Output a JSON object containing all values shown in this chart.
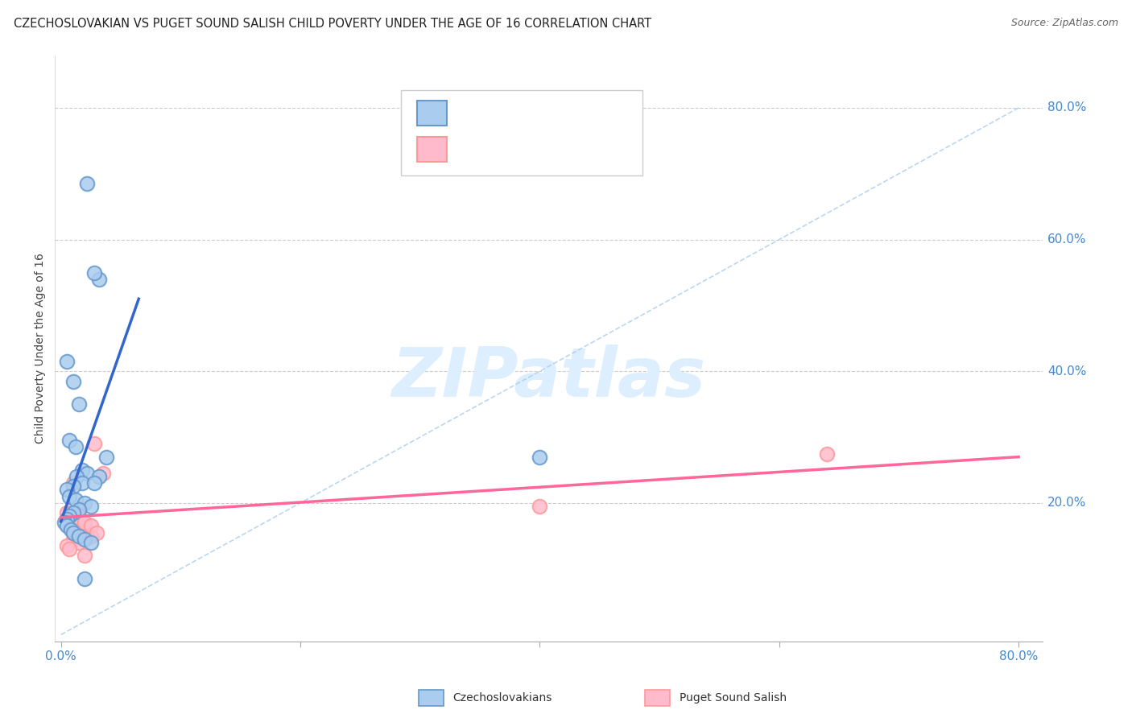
{
  "title": "CZECHOSLOVAKIAN VS PUGET SOUND SALISH CHILD POVERTY UNDER THE AGE OF 16 CORRELATION CHART",
  "source": "Source: ZipAtlas.com",
  "ylabel": "Child Poverty Under the Age of 16",
  "legend_label1": "Czechoslovakians",
  "legend_label2": "Puget Sound Salish",
  "blue_scatter_x": [
    0.022,
    0.032,
    0.028,
    0.005,
    0.01,
    0.015,
    0.007,
    0.012,
    0.018,
    0.022,
    0.013,
    0.018,
    0.01,
    0.005,
    0.007,
    0.012,
    0.02,
    0.025,
    0.015,
    0.01,
    0.007,
    0.005,
    0.003,
    0.005,
    0.008,
    0.01,
    0.015,
    0.02,
    0.025,
    0.032,
    0.038,
    0.028,
    0.4,
    0.02
  ],
  "blue_scatter_y": [
    0.685,
    0.54,
    0.55,
    0.415,
    0.385,
    0.35,
    0.295,
    0.285,
    0.25,
    0.245,
    0.24,
    0.23,
    0.225,
    0.22,
    0.21,
    0.205,
    0.2,
    0.195,
    0.19,
    0.185,
    0.18,
    0.175,
    0.17,
    0.165,
    0.16,
    0.155,
    0.15,
    0.145,
    0.14,
    0.24,
    0.27,
    0.23,
    0.27,
    0.085
  ],
  "pink_scatter_x": [
    0.005,
    0.01,
    0.015,
    0.005,
    0.007,
    0.01,
    0.015,
    0.02,
    0.025,
    0.01,
    0.015,
    0.005,
    0.007,
    0.02,
    0.028,
    0.035,
    0.01,
    0.015,
    0.02,
    0.025,
    0.03,
    0.4,
    0.64
  ],
  "pink_scatter_y": [
    0.185,
    0.185,
    0.18,
    0.175,
    0.17,
    0.165,
    0.16,
    0.155,
    0.15,
    0.145,
    0.14,
    0.135,
    0.13,
    0.12,
    0.29,
    0.245,
    0.23,
    0.175,
    0.17,
    0.165,
    0.155,
    0.195,
    0.275
  ],
  "blue_line": {
    "x0": 0.0,
    "y0": 0.172,
    "x1": 0.065,
    "y1": 0.51
  },
  "pink_line": {
    "x0": 0.0,
    "y0": 0.178,
    "x1": 0.8,
    "y1": 0.27
  },
  "diag_line": {
    "x0": 0.0,
    "y0": 0.0,
    "x1": 0.8,
    "y1": 0.8
  },
  "xlim": [
    -0.005,
    0.82
  ],
  "ylim": [
    -0.01,
    0.88
  ],
  "xtick_positions": [
    0.0,
    0.2,
    0.4,
    0.6,
    0.8
  ],
  "ytick_positions": [
    0.2,
    0.4,
    0.6,
    0.8
  ],
  "ytick_labels": [
    "20.0%",
    "40.0%",
    "60.0%",
    "80.0%"
  ],
  "blue_face": "#AACCEE",
  "blue_edge": "#6699CC",
  "blue_line_color": "#3366CC",
  "pink_face": "#FFBBCC",
  "pink_edge": "#FF9999",
  "pink_line_color": "#FF6699",
  "diag_color": "#AACCEE",
  "grid_color": "#CCCCCC",
  "tick_color": "#4488CC",
  "title_color": "#222222",
  "source_color": "#666666",
  "watermark_text": "ZIPatlas",
  "watermark_color": "#DDEEFF",
  "background_color": "#FFFFFF"
}
